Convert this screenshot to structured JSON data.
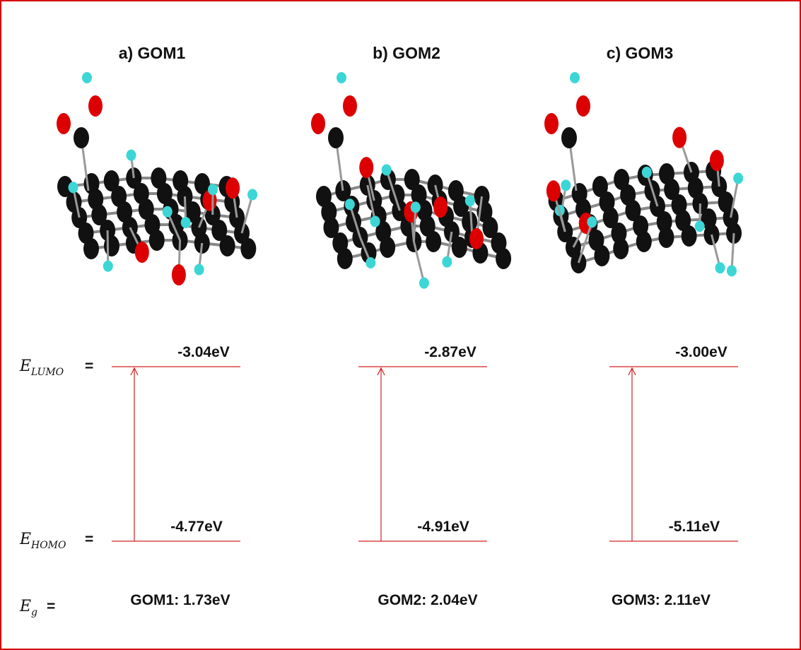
{
  "labels": {
    "lumo": {
      "symbol": "E",
      "subscript": "LUMO",
      "equals": "="
    },
    "homo": {
      "symbol": "E",
      "subscript": "HOMO",
      "equals": "="
    },
    "gap": {
      "symbol": "E",
      "subscript": "g",
      "equals": "="
    }
  },
  "panels": [
    {
      "title": "a) GOM1",
      "lumo": "-3.04eV",
      "homo": "-4.77eV",
      "gap": "GOM1: 1.73eV"
    },
    {
      "title": "b) GOM2",
      "lumo": "-2.87eV",
      "homo": "-4.91eV",
      "gap": "GOM2: 2.04eV"
    },
    {
      "title": "c) GOM3",
      "lumo": "-3.00eV",
      "homo": "-5.11eV",
      "gap": "GOM3: 2.11eV"
    }
  ]
}
